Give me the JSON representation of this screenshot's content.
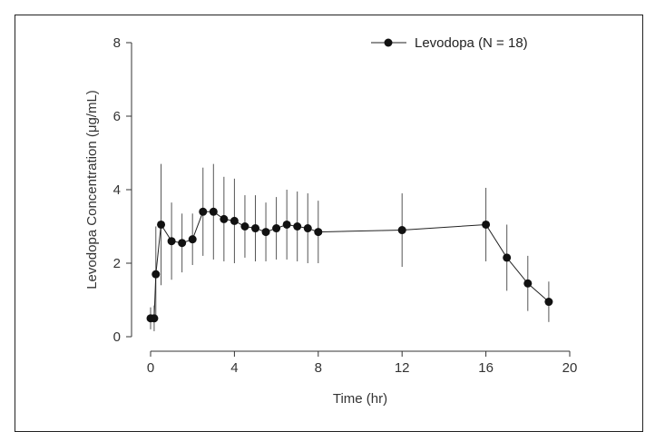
{
  "chart_data": {
    "type": "line",
    "xlabel": "Time (hr)",
    "ylabel": "Levodopa Concentration (μg/mL)",
    "xlim": [
      0,
      20
    ],
    "ylim": [
      0,
      8
    ],
    "xticks": [
      0,
      4,
      8,
      12,
      16,
      20
    ],
    "yticks": [
      0,
      2,
      4,
      6,
      8
    ],
    "grid": false,
    "legend_position": "top-right",
    "series": [
      {
        "name": "Levodopa (N = 18)",
        "color": "#111111",
        "x": [
          0,
          0.17,
          0.25,
          0.5,
          1,
          1.5,
          2,
          2.5,
          3,
          3.5,
          4,
          4.5,
          5,
          5.5,
          6,
          6.5,
          7,
          7.5,
          8,
          12,
          16,
          17,
          18,
          19
        ],
        "y": [
          0.5,
          0.5,
          1.7,
          3.05,
          2.6,
          2.55,
          2.65,
          3.4,
          3.4,
          3.2,
          3.15,
          3.0,
          2.95,
          2.85,
          2.95,
          3.05,
          3.0,
          2.95,
          2.85,
          2.9,
          3.05,
          2.15,
          1.45,
          0.95
        ],
        "error": [
          0.3,
          0.35,
          1.3,
          1.65,
          1.05,
          0.8,
          0.7,
          1.2,
          1.3,
          1.15,
          1.15,
          0.85,
          0.9,
          0.8,
          0.85,
          0.95,
          0.95,
          0.95,
          0.85,
          1.0,
          1.0,
          0.9,
          0.75,
          0.55
        ]
      }
    ]
  }
}
